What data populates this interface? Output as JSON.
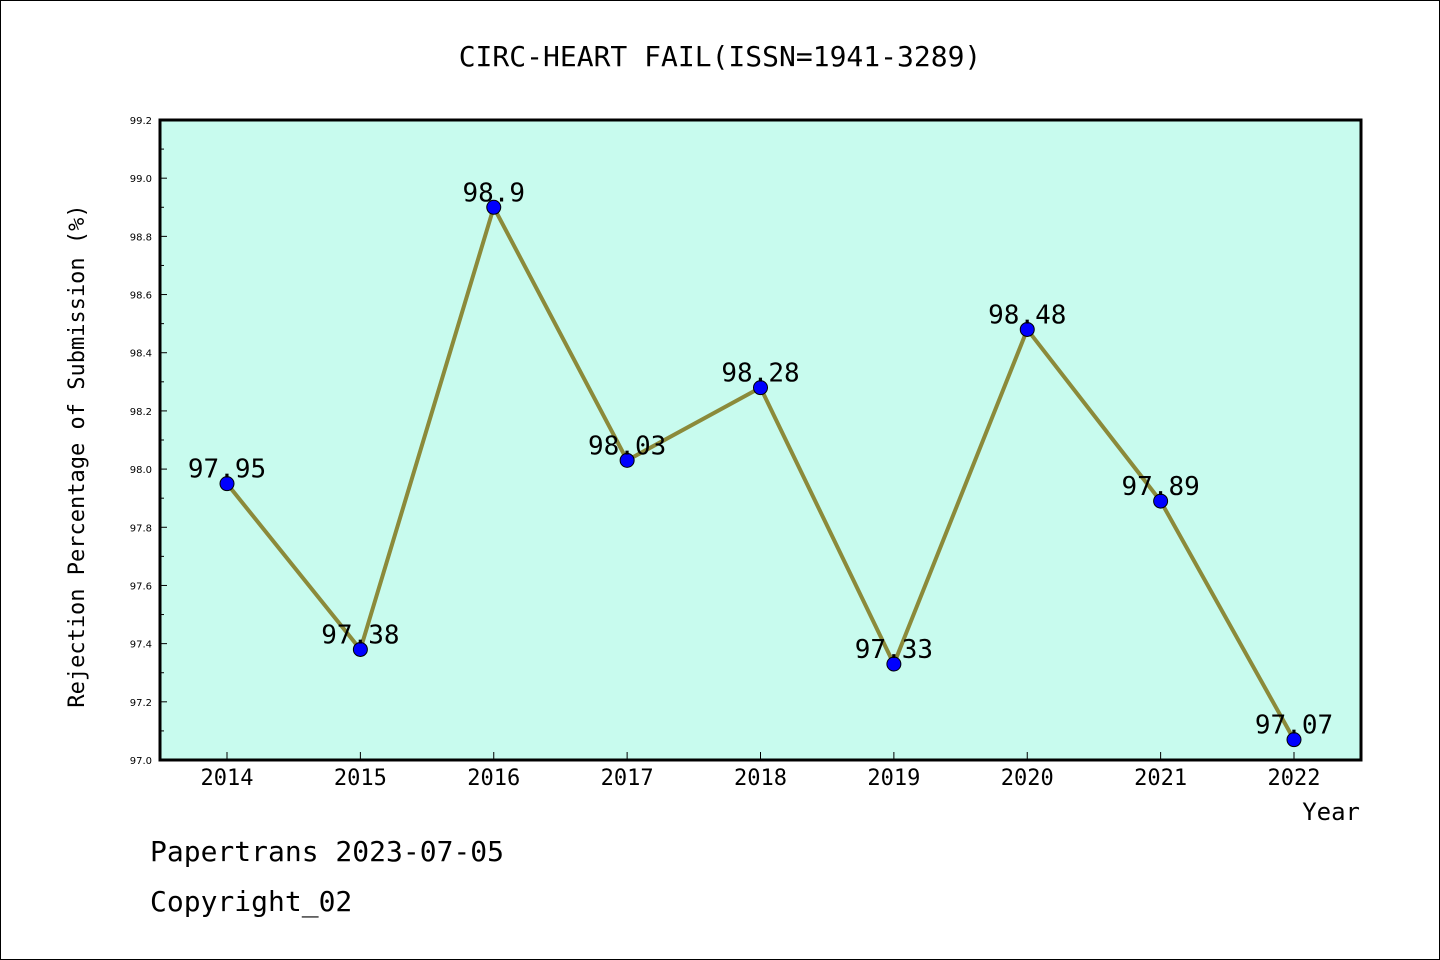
{
  "chart_data": {
    "type": "line",
    "title": "CIRC-HEART FAIL(ISSN=1941-3289)",
    "xlabel": "Year",
    "ylabel": "Rejection Percentage of Submission (%)",
    "categories": [
      "2014",
      "2015",
      "2016",
      "2017",
      "2018",
      "2019",
      "2020",
      "2021",
      "2022"
    ],
    "series": [
      {
        "values": [
          97.95,
          97.38,
          98.9,
          98.03,
          98.28,
          97.33,
          98.48,
          97.89,
          97.07
        ],
        "labels": [
          "97.95",
          "97.38",
          "98.9",
          "98.03",
          "98.28",
          "97.33",
          "98.48",
          "97.89",
          "97.07"
        ]
      }
    ],
    "ylim": [
      97.0,
      99.2
    ],
    "yticks": [
      "97.0",
      "97.2",
      "97.4",
      "97.6",
      "97.8",
      "98.0",
      "98.2",
      "98.4",
      "98.6",
      "98.8",
      "99.0",
      "99.2"
    ],
    "grid": false,
    "colors": {
      "plot_background": "#c8fbee",
      "line": "#8b8a3a",
      "marker": "#0000ff"
    }
  },
  "footer": {
    "line1": "Papertrans 2023-07-05",
    "line2": "Copyright_02"
  }
}
